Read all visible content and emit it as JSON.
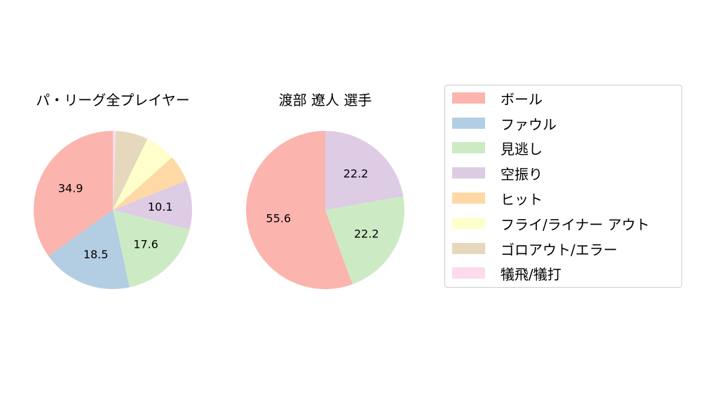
{
  "chart_data": [
    {
      "type": "pie",
      "title": "パ・リーグ全プレイヤー",
      "categories": [
        "ボール",
        "ファウル",
        "見逃し",
        "空振り",
        "ヒット",
        "フライ/ライナー アウト",
        "ゴロアウト/エラー",
        "犠飛/犠打"
      ],
      "values": [
        34.9,
        18.5,
        17.6,
        10.1,
        5.5,
        6.2,
        6.6,
        0.6
      ],
      "labels_shown": [
        "34.9",
        "18.5",
        "17.6",
        "10.1",
        "",
        "",
        "",
        ""
      ],
      "start_angle": 90,
      "direction": "counterclockwise"
    },
    {
      "type": "pie",
      "title": "渡部 遼人  選手",
      "categories": [
        "ボール",
        "見逃し",
        "空振り"
      ],
      "values": [
        55.6,
        22.2,
        22.2
      ],
      "labels_shown": [
        "55.6",
        "22.2",
        "22.2"
      ],
      "start_angle": 90,
      "direction": "counterclockwise"
    }
  ],
  "titles": {
    "left": "パ・リーグ全プレイヤー",
    "right": "渡部 遼人  選手"
  },
  "legend": {
    "items": [
      {
        "label": "ボール",
        "color": "#fbb4ae"
      },
      {
        "label": "ファウル",
        "color": "#b3cde3"
      },
      {
        "label": "見逃し",
        "color": "#ccebc5"
      },
      {
        "label": "空振り",
        "color": "#decbe4"
      },
      {
        "label": "ヒット",
        "color": "#fed9a6"
      },
      {
        "label": "フライ/ライナー アウト",
        "color": "#ffffcc"
      },
      {
        "label": "ゴロアウト/エラー",
        "color": "#e5d8bd"
      },
      {
        "label": "犠飛/犠打",
        "color": "#fddaec"
      }
    ]
  },
  "colors": {
    "ボール": "#fbb4ae",
    "ファウル": "#b3cde3",
    "見逃し": "#ccebc5",
    "空振り": "#decbe4",
    "ヒット": "#fed9a6",
    "フライ/ライナー アウト": "#ffffcc",
    "ゴロアウト/エラー": "#e5d8bd",
    "犠飛/犠打": "#fddaec"
  }
}
